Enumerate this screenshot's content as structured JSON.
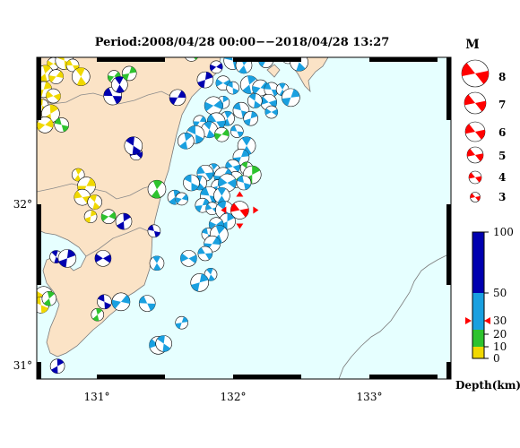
{
  "title": "Period:2008/04/28 00:00−−2018/04/28 13:27",
  "axes": {
    "lon_ticks": [
      "131°",
      "132°",
      "133°"
    ],
    "lat_ticks": [
      "32°",
      "31°"
    ]
  },
  "magnitude_legend": {
    "header": "M",
    "levels": [
      "8",
      "7",
      "6",
      "5",
      "4",
      "3"
    ]
  },
  "depth_legend": {
    "ticks": [
      "100",
      "50",
      "30",
      "20",
      "10",
      "0"
    ],
    "label": "Depth(km)",
    "colors": {
      "shallow": "#f0d800",
      "mid_shallow": "#2ec32e",
      "mid": "#1aa0e0",
      "deep": "#0000b0"
    }
  },
  "colors": {
    "land": "#fbe3c6",
    "sea": "#e6ffff",
    "coast": "#7a7a7a",
    "highlight": "#ff0000"
  },
  "chart_data": {
    "type": "map",
    "lon_range": [
      130.6,
      133.6
    ],
    "lat_range": [
      30.9,
      32.9
    ],
    "main_event": {
      "lon": 132.07,
      "lat": 31.95,
      "depth_km": 30
    },
    "events": [
      {
        "lon": 130.72,
        "lat": 32.86,
        "c": "y"
      },
      {
        "lon": 130.8,
        "lat": 32.88,
        "c": "y"
      },
      {
        "lon": 130.66,
        "lat": 32.8,
        "c": "y"
      },
      {
        "lon": 130.74,
        "lat": 32.78,
        "c": "y"
      },
      {
        "lon": 130.86,
        "lat": 32.85,
        "c": "y"
      },
      {
        "lon": 130.92,
        "lat": 32.78,
        "c": "y"
      },
      {
        "lon": 130.65,
        "lat": 32.7,
        "c": "y"
      },
      {
        "lon": 130.72,
        "lat": 32.66,
        "c": "y"
      },
      {
        "lon": 130.64,
        "lat": 32.6,
        "c": "y"
      },
      {
        "lon": 130.7,
        "lat": 32.55,
        "c": "y"
      },
      {
        "lon": 130.66,
        "lat": 32.48,
        "c": "y"
      },
      {
        "lon": 130.78,
        "lat": 32.48,
        "c": "g"
      },
      {
        "lon": 130.9,
        "lat": 32.17,
        "c": "y"
      },
      {
        "lon": 130.96,
        "lat": 32.1,
        "c": "y"
      },
      {
        "lon": 130.93,
        "lat": 32.03,
        "c": "y"
      },
      {
        "lon": 131.02,
        "lat": 32.0,
        "c": "y"
      },
      {
        "lon": 130.99,
        "lat": 31.91,
        "c": "y"
      },
      {
        "lon": 130.65,
        "lat": 31.42,
        "c": "y"
      },
      {
        "lon": 130.63,
        "lat": 31.36,
        "c": "y"
      },
      {
        "lon": 130.69,
        "lat": 31.4,
        "c": "g"
      },
      {
        "lon": 131.16,
        "lat": 32.78,
        "c": "g"
      },
      {
        "lon": 131.15,
        "lat": 32.66,
        "c": "b"
      },
      {
        "lon": 131.2,
        "lat": 32.73,
        "c": "b"
      },
      {
        "lon": 131.27,
        "lat": 32.8,
        "c": "g"
      },
      {
        "lon": 131.32,
        "lat": 32.3,
        "c": "b"
      },
      {
        "lon": 131.3,
        "lat": 32.35,
        "c": "b"
      },
      {
        "lon": 131.23,
        "lat": 31.88,
        "c": "b"
      },
      {
        "lon": 131.12,
        "lat": 31.91,
        "c": "g"
      },
      {
        "lon": 131.45,
        "lat": 31.82,
        "c": "b"
      },
      {
        "lon": 131.47,
        "lat": 32.08,
        "c": "g"
      },
      {
        "lon": 131.62,
        "lat": 32.65,
        "c": "b"
      },
      {
        "lon": 131.72,
        "lat": 32.92,
        "c": "g"
      },
      {
        "lon": 130.74,
        "lat": 31.66,
        "c": "b"
      },
      {
        "lon": 130.82,
        "lat": 31.65,
        "c": "b"
      },
      {
        "lon": 131.08,
        "lat": 31.65,
        "c": "b"
      },
      {
        "lon": 131.09,
        "lat": 31.38,
        "c": "b"
      },
      {
        "lon": 131.04,
        "lat": 31.3,
        "c": "g"
      },
      {
        "lon": 131.21,
        "lat": 31.38,
        "c": "c"
      },
      {
        "lon": 131.4,
        "lat": 31.37,
        "c": "c"
      },
      {
        "lon": 131.47,
        "lat": 31.62,
        "c": "c"
      },
      {
        "lon": 131.65,
        "lat": 31.25,
        "c": "c"
      },
      {
        "lon": 131.48,
        "lat": 31.11,
        "c": "c"
      },
      {
        "lon": 131.52,
        "lat": 31.12,
        "c": "c"
      },
      {
        "lon": 130.75,
        "lat": 30.98,
        "c": "b"
      },
      {
        "lon": 131.9,
        "lat": 32.84,
        "c": "b"
      },
      {
        "lon": 132.02,
        "lat": 32.88,
        "c": "c"
      },
      {
        "lon": 132.1,
        "lat": 32.85,
        "c": "c"
      },
      {
        "lon": 132.26,
        "lat": 32.88,
        "c": "c"
      },
      {
        "lon": 132.42,
        "lat": 32.9,
        "c": "c"
      },
      {
        "lon": 132.5,
        "lat": 32.87,
        "c": "c"
      },
      {
        "lon": 131.82,
        "lat": 32.76,
        "c": "b"
      },
      {
        "lon": 131.95,
        "lat": 32.74,
        "c": "c"
      },
      {
        "lon": 132.02,
        "lat": 32.71,
        "c": "c"
      },
      {
        "lon": 132.14,
        "lat": 32.73,
        "c": "c"
      },
      {
        "lon": 132.22,
        "lat": 32.71,
        "c": "c"
      },
      {
        "lon": 132.3,
        "lat": 32.7,
        "c": "c"
      },
      {
        "lon": 132.38,
        "lat": 32.7,
        "c": "c"
      },
      {
        "lon": 132.44,
        "lat": 32.65,
        "c": "c"
      },
      {
        "lon": 132.28,
        "lat": 32.62,
        "c": "c"
      },
      {
        "lon": 132.18,
        "lat": 32.63,
        "c": "c"
      },
      {
        "lon": 131.95,
        "lat": 32.62,
        "c": "c"
      },
      {
        "lon": 131.88,
        "lat": 32.6,
        "c": "c"
      },
      {
        "lon": 132.08,
        "lat": 32.57,
        "c": "c"
      },
      {
        "lon": 131.98,
        "lat": 32.52,
        "c": "c"
      },
      {
        "lon": 131.78,
        "lat": 32.5,
        "c": "c"
      },
      {
        "lon": 131.9,
        "lat": 32.5,
        "c": "c"
      },
      {
        "lon": 131.85,
        "lat": 32.45,
        "c": "c"
      },
      {
        "lon": 132.15,
        "lat": 32.52,
        "c": "c"
      },
      {
        "lon": 132.3,
        "lat": 32.56,
        "c": "c"
      },
      {
        "lon": 131.75,
        "lat": 32.42,
        "c": "c"
      },
      {
        "lon": 131.68,
        "lat": 32.38,
        "c": "c"
      },
      {
        "lon": 131.94,
        "lat": 32.42,
        "c": "g"
      },
      {
        "lon": 132.05,
        "lat": 32.44,
        "c": "c"
      },
      {
        "lon": 132.12,
        "lat": 32.35,
        "c": "c"
      },
      {
        "lon": 132.08,
        "lat": 32.28,
        "c": "c"
      },
      {
        "lon": 132.02,
        "lat": 32.22,
        "c": "c"
      },
      {
        "lon": 132.12,
        "lat": 32.21,
        "c": "g"
      },
      {
        "lon": 132.16,
        "lat": 32.17,
        "c": "g"
      },
      {
        "lon": 132.04,
        "lat": 32.14,
        "c": "g"
      },
      {
        "lon": 132.1,
        "lat": 32.12,
        "c": "c"
      },
      {
        "lon": 131.88,
        "lat": 32.2,
        "c": "c"
      },
      {
        "lon": 131.95,
        "lat": 32.16,
        "c": "c"
      },
      {
        "lon": 131.82,
        "lat": 32.18,
        "c": "c"
      },
      {
        "lon": 131.78,
        "lat": 32.12,
        "c": "c"
      },
      {
        "lon": 131.91,
        "lat": 32.1,
        "c": "c"
      },
      {
        "lon": 131.98,
        "lat": 32.12,
        "c": "c"
      },
      {
        "lon": 131.72,
        "lat": 32.12,
        "c": "c"
      },
      {
        "lon": 131.6,
        "lat": 32.03,
        "c": "c"
      },
      {
        "lon": 131.65,
        "lat": 32.02,
        "c": "c"
      },
      {
        "lon": 131.85,
        "lat": 32.04,
        "c": "c"
      },
      {
        "lon": 131.94,
        "lat": 32.04,
        "c": "c"
      },
      {
        "lon": 131.8,
        "lat": 31.98,
        "c": "c"
      },
      {
        "lon": 131.87,
        "lat": 31.96,
        "c": "c"
      },
      {
        "lon": 131.96,
        "lat": 31.95,
        "c": "c"
      },
      {
        "lon": 131.98,
        "lat": 31.88,
        "c": "c"
      },
      {
        "lon": 131.9,
        "lat": 31.86,
        "c": "c"
      },
      {
        "lon": 131.84,
        "lat": 31.8,
        "c": "c"
      },
      {
        "lon": 131.92,
        "lat": 31.8,
        "c": "c"
      },
      {
        "lon": 131.87,
        "lat": 31.74,
        "c": "c"
      },
      {
        "lon": 131.82,
        "lat": 31.68,
        "c": "c"
      },
      {
        "lon": 131.86,
        "lat": 31.55,
        "c": "c"
      },
      {
        "lon": 131.78,
        "lat": 31.5,
        "c": "c"
      },
      {
        "lon": 131.7,
        "lat": 31.65,
        "c": "c"
      }
    ]
  }
}
